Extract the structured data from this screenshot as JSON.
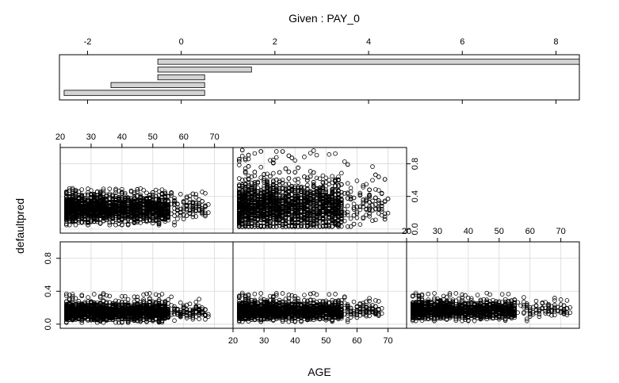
{
  "chart_data": {
    "type": "scatter",
    "title": "Given : PAY_0",
    "xlabel": "AGE",
    "ylabel": "defaultpred",
    "given": {
      "variable": "PAY_0",
      "xlim": [
        -2.6,
        8.5
      ],
      "ticks": [
        -2,
        0,
        2,
        4,
        6,
        8
      ],
      "tick_labels": [
        "-2",
        "0",
        "2",
        "4",
        "6",
        "8"
      ],
      "intervals": [
        [
          -2.5,
          0.5
        ],
        [
          -1.5,
          0.5
        ],
        [
          -0.5,
          0.5
        ],
        [
          -0.5,
          1.5
        ],
        [
          -0.5,
          8.5
        ]
      ]
    },
    "x_axis": {
      "xlim": [
        20,
        76
      ],
      "ticks": [
        20,
        30,
        40,
        50,
        60,
        70
      ],
      "tick_labels": [
        "20",
        "30",
        "40",
        "50",
        "60",
        "70"
      ]
    },
    "y_axis": {
      "ylim": [
        -0.05,
        1.0
      ],
      "ticks": [
        0.0,
        0.4,
        0.8
      ],
      "tick_labels": [
        "0.0",
        "0.4",
        "0.8"
      ]
    },
    "panels": [
      {
        "interval_index": 0,
        "row": 1,
        "col": 0,
        "age_range": [
          21,
          68
        ],
        "y_center": 0.15,
        "y_spread": 0.05,
        "y_max": 0.38,
        "y_min": 0.02,
        "n": 2200
      },
      {
        "interval_index": 1,
        "row": 1,
        "col": 1,
        "age_range": [
          21,
          68
        ],
        "y_center": 0.16,
        "y_spread": 0.05,
        "y_max": 0.38,
        "y_min": 0.03,
        "n": 2200
      },
      {
        "interval_index": 2,
        "row": 1,
        "col": 2,
        "age_range": [
          21,
          73
        ],
        "y_center": 0.17,
        "y_spread": 0.05,
        "y_max": 0.38,
        "y_min": 0.04,
        "n": 1700
      },
      {
        "interval_index": 3,
        "row": 0,
        "col": 0,
        "age_range": [
          21,
          68
        ],
        "y_center": 0.25,
        "y_spread": 0.08,
        "y_max": 0.5,
        "y_min": 0.05,
        "n": 2400
      },
      {
        "interval_index": 4,
        "row": 0,
        "col": 1,
        "age_range": [
          21,
          70
        ],
        "y_center": 0.28,
        "y_spread": 0.14,
        "y_max": 0.97,
        "y_min": 0.03,
        "n": 2600
      }
    ]
  }
}
